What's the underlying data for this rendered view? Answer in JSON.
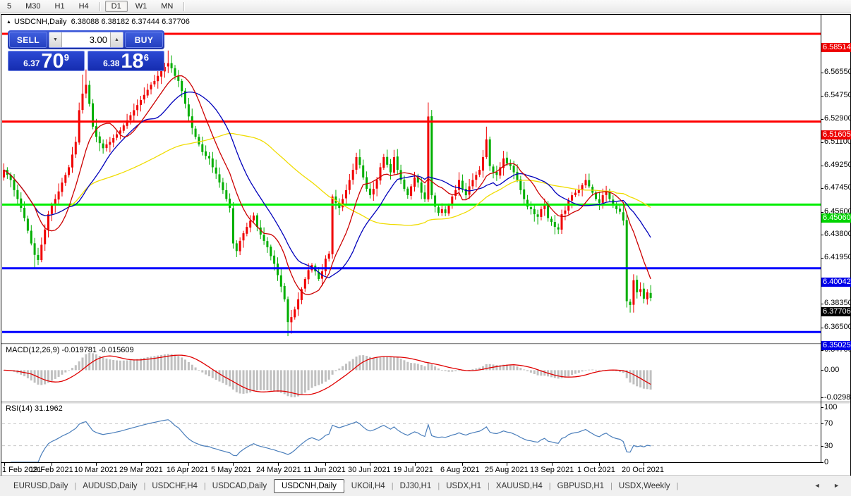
{
  "toolbar": {
    "timeframes": [
      {
        "label": "5",
        "active": false,
        "sep_after": false
      },
      {
        "label": "M30",
        "active": false,
        "sep_after": false
      },
      {
        "label": "H1",
        "active": false,
        "sep_after": false
      },
      {
        "label": "H4",
        "active": false,
        "sep_after": true
      },
      {
        "label": "D1",
        "active": true,
        "sep_after": false
      },
      {
        "label": "W1",
        "active": false,
        "sep_after": false
      },
      {
        "label": "MN",
        "active": false,
        "sep_after": true
      }
    ]
  },
  "chart_header": {
    "symbol_title": "USDCNH,Daily",
    "open": "6.38088",
    "high": "6.38182",
    "low": "6.37444",
    "close": "6.37706",
    "collapse_icon": "up-triangle"
  },
  "trade_panel": {
    "sell_label": "SELL",
    "buy_label": "BUY",
    "volume": "3.00",
    "sell_price_small": "6.37",
    "sell_price_big": "70",
    "sell_price_sup": "9",
    "buy_price_small": "6.38",
    "buy_price_big": "18",
    "buy_price_sup": "6"
  },
  "macd_panel": {
    "label": "MACD(12,26,9) -0.019781 -0.015609"
  },
  "rsi_panel": {
    "label": "RSI(14) 31.1962"
  },
  "tabs": {
    "items": [
      {
        "label": "EURUSD,Daily",
        "active": false
      },
      {
        "label": "AUDUSD,Daily",
        "active": false
      },
      {
        "label": "USDCHF,H4",
        "active": false
      },
      {
        "label": "USDCAD,Daily",
        "active": false
      },
      {
        "label": "USDCNH,Daily",
        "active": true
      },
      {
        "label": "UKOil,H4",
        "active": false
      },
      {
        "label": "DJ30,H1",
        "active": false
      },
      {
        "label": "USDX,H1",
        "active": false
      },
      {
        "label": "XAUUSD,H4",
        "active": false
      },
      {
        "label": "GBPUSD,H1",
        "active": false
      },
      {
        "label": "USDX,Weekly",
        "active": false
      }
    ],
    "scroll_arrows": [
      "◄",
      "►"
    ]
  },
  "colors": {
    "bull_candle": "#f00000",
    "bear_candle": "#00ae00",
    "resistance_line": "#ff0000",
    "green_level": "#00ee00",
    "support_line": "#0000ff",
    "ma_fast": "#cc0000",
    "ma_mid": "#0000bb",
    "ma_slow": "#f0dc00",
    "macd_bar": "#c0c0c0",
    "macd_signal": "#e00000",
    "rsi_line": "#4a7ebb",
    "rsi_level_dash": "#c8c8c8",
    "badge_red": "#ee0000",
    "badge_green": "#00d400",
    "badge_blue": "#0000e8",
    "badge_black": "#000000"
  },
  "chart_data": {
    "type": "candlestick+indicators",
    "symbol": "USDCNH",
    "timeframe": "Daily",
    "ohlc_display": {
      "open": 6.38088,
      "high": 6.38182,
      "low": 6.37444,
      "close": 6.37706
    },
    "bars": 190,
    "price_path": [
      [
        0,
        6.478
      ],
      [
        1,
        6.474
      ],
      [
        2,
        6.47
      ],
      [
        3,
        6.462
      ],
      [
        4,
        6.455
      ],
      [
        5,
        6.448
      ],
      [
        6,
        6.44
      ],
      [
        7,
        6.43
      ],
      [
        8,
        6.42
      ],
      [
        9,
        6.411
      ],
      [
        10,
        6.407
      ],
      [
        11,
        6.419
      ],
      [
        12,
        6.431
      ],
      [
        13,
        6.443
      ],
      [
        14,
        6.45
      ],
      [
        15,
        6.455
      ],
      [
        16,
        6.461
      ],
      [
        17,
        6.468
      ],
      [
        18,
        6.474
      ],
      [
        19,
        6.48
      ],
      [
        20,
        6.49
      ],
      [
        21,
        6.5
      ],
      [
        22,
        6.525
      ],
      [
        23,
        6.538
      ],
      [
        24,
        6.545
      ],
      [
        25,
        6.53
      ],
      [
        26,
        6.512
      ],
      [
        27,
        6.504
      ],
      [
        28,
        6.499
      ],
      [
        29,
        6.495
      ],
      [
        30,
        6.498
      ],
      [
        31,
        6.5
      ],
      [
        32,
        6.503
      ],
      [
        33,
        6.506
      ],
      [
        34,
        6.509
      ],
      [
        35,
        6.513
      ],
      [
        36,
        6.517
      ],
      [
        37,
        6.521
      ],
      [
        38,
        6.525
      ],
      [
        39,
        6.529
      ],
      [
        40,
        6.533
      ],
      [
        41,
        6.537
      ],
      [
        42,
        6.541
      ],
      [
        43,
        6.545
      ],
      [
        44,
        6.548
      ],
      [
        45,
        6.552
      ],
      [
        46,
        6.556
      ],
      [
        47,
        6.559
      ],
      [
        48,
        6.562
      ],
      [
        49,
        6.558
      ],
      [
        50,
        6.552
      ],
      [
        51,
        6.548
      ],
      [
        52,
        6.54
      ],
      [
        53,
        6.53
      ],
      [
        54,
        6.52
      ],
      [
        55,
        6.511
      ],
      [
        56,
        6.504
      ],
      [
        57,
        6.498
      ],
      [
        58,
        6.492
      ],
      [
        59,
        6.489
      ],
      [
        60,
        6.487
      ],
      [
        61,
        6.48
      ],
      [
        62,
        6.475
      ],
      [
        63,
        6.468
      ],
      [
        64,
        6.462
      ],
      [
        65,
        6.455
      ],
      [
        66,
        6.448
      ],
      [
        67,
        6.42
      ],
      [
        68,
        6.414
      ],
      [
        69,
        6.422
      ],
      [
        70,
        6.428
      ],
      [
        71,
        6.433
      ],
      [
        72,
        6.438
      ],
      [
        73,
        6.442
      ],
      [
        74,
        6.433
      ],
      [
        75,
        6.427
      ],
      [
        76,
        6.422
      ],
      [
        77,
        6.417
      ],
      [
        78,
        6.41
      ],
      [
        79,
        6.404
      ],
      [
        80,
        6.395
      ],
      [
        81,
        6.386
      ],
      [
        82,
        6.376
      ],
      [
        83,
        6.358
      ],
      [
        84,
        6.362
      ],
      [
        85,
        6.368
      ],
      [
        86,
        6.376
      ],
      [
        87,
        6.384
      ],
      [
        88,
        6.392
      ],
      [
        89,
        6.399
      ],
      [
        90,
        6.403
      ],
      [
        91,
        6.398
      ],
      [
        92,
        6.392
      ],
      [
        93,
        6.398
      ],
      [
        94,
        6.408
      ],
      [
        95,
        6.412
      ],
      [
        96,
        6.457
      ],
      [
        97,
        6.452
      ],
      [
        98,
        6.448
      ],
      [
        99,
        6.455
      ],
      [
        100,
        6.462
      ],
      [
        101,
        6.47
      ],
      [
        102,
        6.478
      ],
      [
        103,
        6.488
      ],
      [
        104,
        6.482
      ],
      [
        105,
        6.472
      ],
      [
        106,
        6.463
      ],
      [
        107,
        6.458
      ],
      [
        108,
        6.463
      ],
      [
        109,
        6.47
      ],
      [
        110,
        6.48
      ],
      [
        111,
        6.488
      ],
      [
        112,
        6.482
      ],
      [
        113,
        6.476
      ],
      [
        114,
        6.488
      ],
      [
        115,
        6.478
      ],
      [
        116,
        6.47
      ],
      [
        117,
        6.463
      ],
      [
        118,
        6.458
      ],
      [
        119,
        6.465
      ],
      [
        120,
        6.472
      ],
      [
        121,
        6.468
      ],
      [
        122,
        6.46
      ],
      [
        123,
        6.455
      ],
      [
        124,
        6.52
      ],
      [
        125,
        6.458
      ],
      [
        126,
        6.449
      ],
      [
        127,
        6.444
      ],
      [
        128,
        6.447
      ],
      [
        129,
        6.444
      ],
      [
        130,
        6.45
      ],
      [
        131,
        6.457
      ],
      [
        132,
        6.462
      ],
      [
        133,
        6.47
      ],
      [
        134,
        6.463
      ],
      [
        135,
        6.458
      ],
      [
        136,
        6.465
      ],
      [
        137,
        6.47
      ],
      [
        138,
        6.474
      ],
      [
        139,
        6.478
      ],
      [
        140,
        6.488
      ],
      [
        141,
        6.502
      ],
      [
        142,
        6.481
      ],
      [
        143,
        6.476
      ],
      [
        144,
        6.474
      ],
      [
        145,
        6.48
      ],
      [
        146,
        6.487
      ],
      [
        147,
        6.483
      ],
      [
        148,
        6.481
      ],
      [
        149,
        6.476
      ],
      [
        150,
        6.47
      ],
      [
        151,
        6.462
      ],
      [
        152,
        6.455
      ],
      [
        153,
        6.449
      ],
      [
        154,
        6.447
      ],
      [
        155,
        6.443
      ],
      [
        156,
        6.441
      ],
      [
        157,
        6.447
      ],
      [
        158,
        6.451
      ],
      [
        159,
        6.44
      ],
      [
        160,
        6.437
      ],
      [
        161,
        6.433
      ],
      [
        162,
        6.431
      ],
      [
        163,
        6.443
      ],
      [
        164,
        6.446
      ],
      [
        165,
        6.454
      ],
      [
        166,
        6.458
      ],
      [
        167,
        6.46
      ],
      [
        168,
        6.462
      ],
      [
        169,
        6.466
      ],
      [
        170,
        6.47
      ],
      [
        171,
        6.465
      ],
      [
        172,
        6.46
      ],
      [
        173,
        6.455
      ],
      [
        174,
        6.452
      ],
      [
        175,
        6.458
      ],
      [
        176,
        6.461
      ],
      [
        177,
        6.455
      ],
      [
        178,
        6.45
      ],
      [
        179,
        6.447
      ],
      [
        180,
        6.445
      ],
      [
        181,
        6.438
      ],
      [
        182,
        6.3745
      ],
      [
        183,
        6.3715
      ],
      [
        184,
        6.391
      ],
      [
        185,
        6.3815
      ],
      [
        186,
        6.384
      ],
      [
        187,
        6.3765
      ],
      [
        188,
        6.3815
      ],
      [
        189,
        6.37706
      ]
    ],
    "first_open": 6.472,
    "special_wicks": {
      "9": {
        "low": 6.401
      },
      "10": {
        "low": 6.403
      },
      "23": {
        "high": 6.553
      },
      "24": {
        "high": 6.557
      },
      "48": {
        "high": 6.572
      },
      "83": {
        "low": 6.347
      },
      "84": {
        "low": 6.349
      },
      "124": {
        "high": 6.531
      },
      "141": {
        "high": 6.512
      },
      "183": {
        "low": 6.3655
      },
      "184": {
        "low": 6.3655
      }
    },
    "levels": [
      {
        "price": 6.58514,
        "color": "#ff0000",
        "width": 3
      },
      {
        "price": 6.51605,
        "color": "#ff0000",
        "width": 3
      },
      {
        "price": 6.4506,
        "color": "#00ee00",
        "width": 3
      },
      {
        "price": 6.40042,
        "color": "#0000ff",
        "width": 3
      },
      {
        "price": 6.35025,
        "color": "#0000ff",
        "width": 3
      }
    ],
    "axis_ticks": [
      6.5655,
      6.5475,
      6.529,
      6.511,
      6.4925,
      6.4745,
      6.456,
      6.438,
      6.4195,
      6.3835,
      6.365,
      6.347
    ],
    "badges": [
      {
        "price": 6.58514,
        "color": "#ee0000"
      },
      {
        "price": 6.51605,
        "color": "#ee0000"
      },
      {
        "price": 6.4506,
        "color": "#00d400"
      },
      {
        "price": 6.40042,
        "color": "#0000e8"
      },
      {
        "price": 6.37706,
        "color": "#000000"
      },
      {
        "price": 6.35025,
        "color": "#0000e8"
      }
    ],
    "moving_averages": [
      {
        "period": 10,
        "color": "#cc0000"
      },
      {
        "period": 20,
        "color": "#0000bb"
      },
      {
        "period": 55,
        "color": "#f0dc00"
      }
    ],
    "macd": {
      "fast": 12,
      "slow": 26,
      "signal": 9,
      "value": -0.019781,
      "signal_value": -0.015609,
      "axis_labels": [
        "0.025108",
        "0.00",
        "-0.02988"
      ],
      "axis_values": [
        0.025108,
        0,
        -0.02988
      ]
    },
    "rsi": {
      "period": 14,
      "value": 31.1962,
      "axis_labels": [
        "100",
        "70",
        "30",
        "0"
      ],
      "axis_values": [
        100,
        70,
        30,
        0
      ],
      "levels": [
        70,
        30
      ]
    },
    "dates": [
      {
        "bar": 0,
        "label": "1 Feb 2021"
      },
      {
        "bar": 14,
        "label": "19 Feb 2021"
      },
      {
        "bar": 27,
        "label": "10 Mar 2021"
      },
      {
        "bar": 40,
        "label": "29 Mar 2021"
      },
      {
        "bar": 54,
        "label": "16 Apr 2021"
      },
      {
        "bar": 67,
        "label": "5 May 2021"
      },
      {
        "bar": 80,
        "label": "24 May 2021"
      },
      {
        "bar": 94,
        "label": "11 Jun 2021"
      },
      {
        "bar": 107,
        "label": "30 Jun 2021"
      },
      {
        "bar": 120,
        "label": "19 Jul 2021"
      },
      {
        "bar": 134,
        "label": "6 Aug 2021"
      },
      {
        "bar": 147,
        "label": "25 Aug 2021"
      },
      {
        "bar": 160,
        "label": "13 Sep 2021"
      },
      {
        "bar": 174,
        "label": "1 Oct 2021"
      },
      {
        "bar": 187,
        "label": "20 Oct 2021"
      }
    ]
  }
}
